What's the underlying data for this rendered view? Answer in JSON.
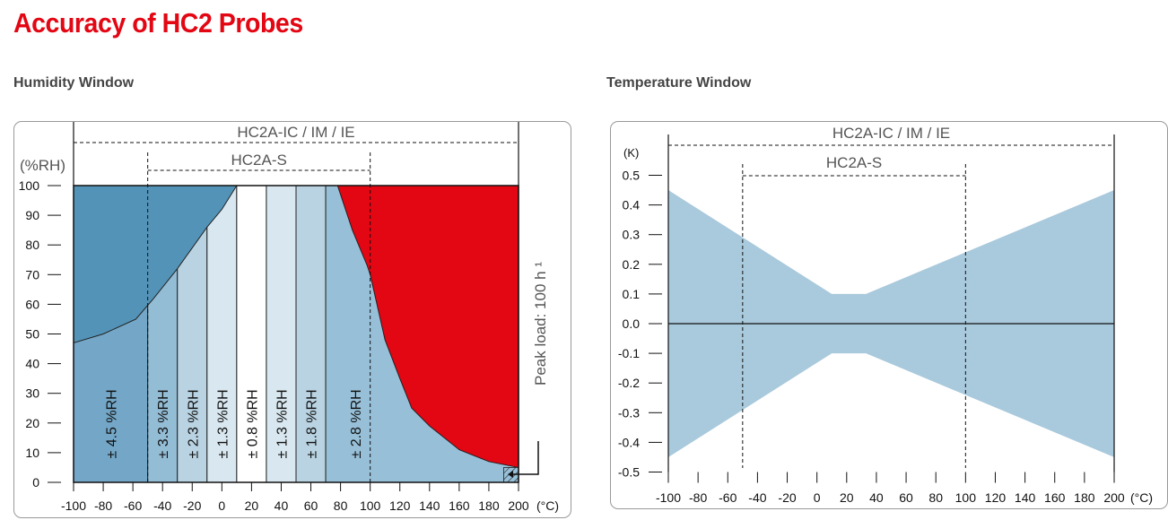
{
  "title": "Accuracy of HC2 Probes",
  "colors": {
    "title": "#e30613",
    "red": "#e30613",
    "dark": "#5393b8",
    "band": "#a9c9dc"
  },
  "chart_data": [
    {
      "type": "area",
      "title": "Humidity Window",
      "xlabel": "(°C)",
      "ylabel": "(%RH)",
      "xlim": [
        -100,
        200
      ],
      "ylim": [
        0,
        100
      ],
      "xticks": [
        -100,
        -80,
        -60,
        -40,
        -20,
        0,
        20,
        40,
        60,
        80,
        100,
        120,
        140,
        160,
        180,
        200
      ],
      "yticks": [
        0,
        10,
        20,
        30,
        40,
        50,
        60,
        70,
        80,
        90,
        100
      ],
      "ranges": [
        {
          "label": "HC2A-IC / IM / IE",
          "from": -100,
          "to": 200
        },
        {
          "label": "HC2A-S",
          "from": -50,
          "to": 100
        }
      ],
      "limit_curve_low_temp": [
        [
          -100,
          47
        ],
        [
          -80,
          50
        ],
        [
          -58,
          55
        ],
        [
          -46,
          62
        ],
        [
          -30,
          72
        ],
        [
          -10,
          86
        ],
        [
          0,
          92
        ],
        [
          10,
          100
        ]
      ],
      "limit_curve_high_temp": [
        [
          78,
          100
        ],
        [
          88,
          85
        ],
        [
          98,
          73
        ],
        [
          100,
          70
        ],
        [
          110,
          48
        ],
        [
          120,
          35
        ],
        [
          128,
          25
        ],
        [
          140,
          19
        ],
        [
          160,
          11
        ],
        [
          180,
          7
        ],
        [
          200,
          5
        ]
      ],
      "accuracy_zones": [
        {
          "from": -100,
          "to": -50,
          "label": "± 4.5 %RH",
          "color": "#74a7c7"
        },
        {
          "from": -50,
          "to": -30,
          "label": "± 3.3 %RH",
          "color": "#93bcd5"
        },
        {
          "from": -30,
          "to": -10,
          "label": "± 2.3 %RH",
          "color": "#b9d3e2"
        },
        {
          "from": -10,
          "to": 10,
          "label": "± 1.3 %RH",
          "color": "#d9e8f0"
        },
        {
          "from": 10,
          "to": 30,
          "label": "± 0.8 %RH",
          "color": "#ffffff"
        },
        {
          "from": 30,
          "to": 50,
          "label": "± 1.3 %RH",
          "color": "#d9e8f0"
        },
        {
          "from": 50,
          "to": 70,
          "label": "± 1.8 %RH",
          "color": "#b9d3e2"
        },
        {
          "from": 70,
          "to": 200,
          "label": "± 2.8 %RH",
          "color": "#97c0d8"
        }
      ],
      "peak_load_label": "Peak load: 100 h ¹"
    },
    {
      "type": "area",
      "title": "Temperature Window",
      "xlabel": "(°C)",
      "ylabel": "(K)",
      "xlim": [
        -100,
        200
      ],
      "ylim": [
        -0.5,
        0.5
      ],
      "xticks": [
        -100,
        -80,
        -60,
        -40,
        -20,
        0,
        20,
        40,
        60,
        80,
        100,
        120,
        140,
        160,
        180,
        200
      ],
      "yticks": [
        0.5,
        0.4,
        0.3,
        0.2,
        0.1,
        0.0,
        -0.1,
        -0.2,
        -0.3,
        -0.4,
        -0.5
      ],
      "ytick_labels": [
        "0.5",
        "0.4",
        "0.3",
        "0.2",
        "0.1",
        "0.0",
        "-0.1",
        "-0.2",
        "-0.3",
        "-0.4",
        "-0.5"
      ],
      "ranges": [
        {
          "label": "HC2A-IC / IM / IE",
          "from": -100,
          "to": 200
        },
        {
          "label": "HC2A-S",
          "from": -50,
          "to": 100
        }
      ],
      "band_upper": [
        [
          -100,
          0.45
        ],
        [
          10,
          0.1
        ],
        [
          33,
          0.1
        ],
        [
          200,
          0.45
        ]
      ]
    }
  ]
}
